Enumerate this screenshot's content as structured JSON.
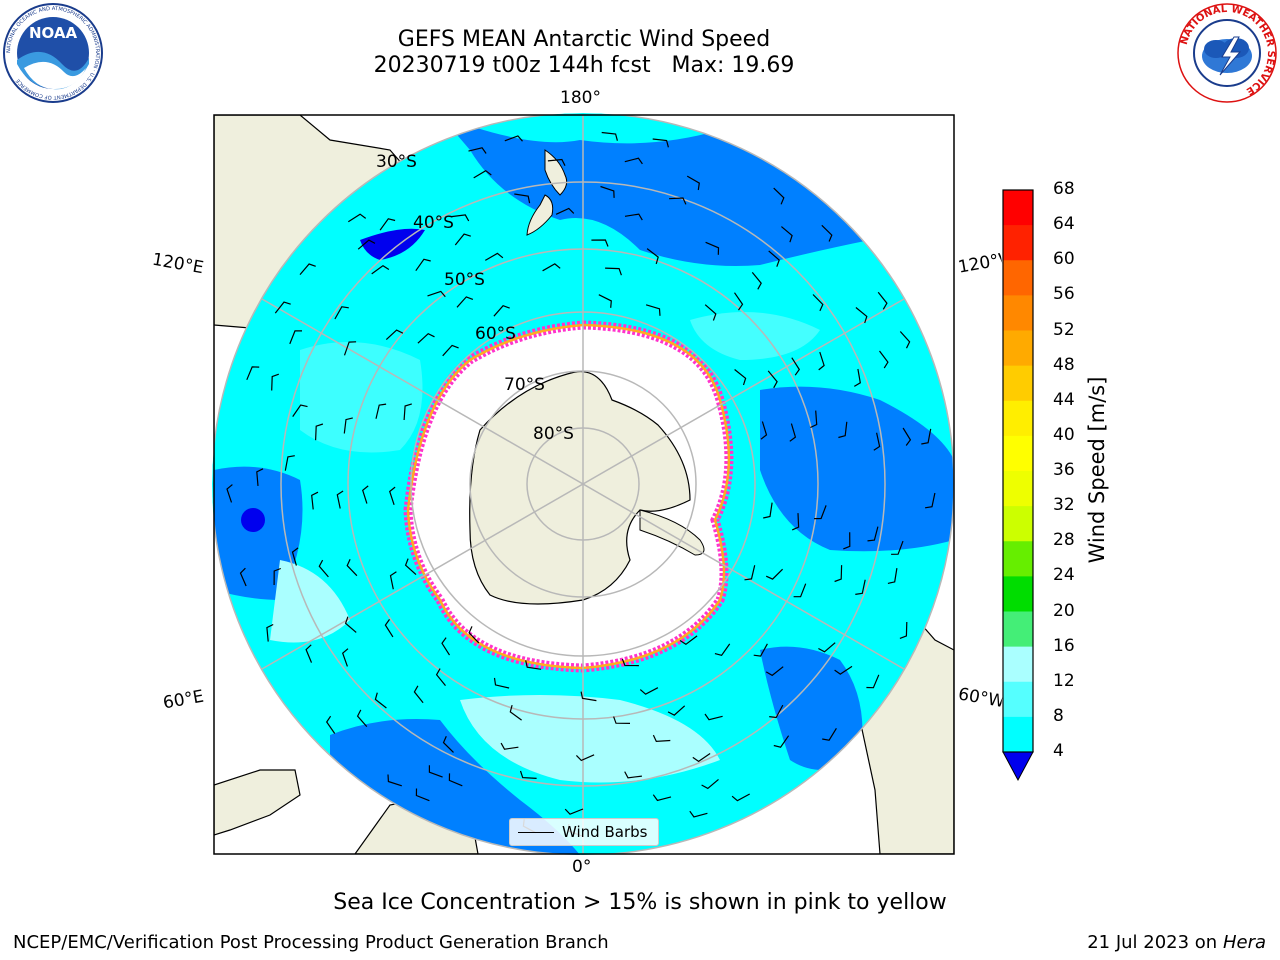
{
  "header": {
    "title_line1": "GEFS MEAN Antarctic Wind Speed",
    "title_line2": "20230719 t00z 144h fcst   Max: 19.69"
  },
  "logos": {
    "noaa_text": "NOAA",
    "noaa_ring": "NATIONAL OCEANIC AND ATMOSPHERIC ADMINISTRATION · U.S. DEPARTMENT OF COMMERCE",
    "nws_ring": "NATIONAL WEATHER SERVICE"
  },
  "map": {
    "projection": "south polar stereographic",
    "longitude_labels": {
      "top": "180°",
      "bottom": "0°",
      "upper_left": "120°E",
      "upper_right": "120°W",
      "lower_left": "60°E",
      "lower_right": "60°W"
    },
    "latitude_labels": [
      "30°S",
      "40°S",
      "50°S",
      "60°S",
      "70°S",
      "80°S"
    ],
    "legend": {
      "label": "Wind Barbs"
    },
    "colors": {
      "ocean_light": "#00ffff",
      "ocean_mid": "#44ffff",
      "ocean_strong": "#0080ff",
      "land": "#efefdd",
      "ice_edge_pink": "#ff33cc",
      "ice_edge_orange": "#ffaa22"
    }
  },
  "colorbar": {
    "title": "Wind Speed [m/s]",
    "ticks": [
      "68",
      "64",
      "60",
      "56",
      "52",
      "48",
      "44",
      "40",
      "36",
      "32",
      "28",
      "24",
      "20",
      "16",
      "12",
      "8",
      "4"
    ],
    "colors": [
      "#ff0000",
      "#ff2200",
      "#ff6600",
      "#ff8800",
      "#ffaa00",
      "#ffcc00",
      "#ffee00",
      "#ffff00",
      "#eeff00",
      "#ccff00",
      "#66ee00",
      "#00dd00",
      "#44ee77",
      "#aaffff",
      "#55ffff",
      "#00ffff",
      "#0088ff"
    ],
    "extend_color": "#0000ee"
  },
  "footer": {
    "note": "Sea Ice Concentration > 15% is shown in pink to yellow",
    "credit": "NCEP/EMC/Verification Post Processing Product Generation Branch",
    "date": "21 Jul 2023 on ",
    "host": "Hera"
  }
}
